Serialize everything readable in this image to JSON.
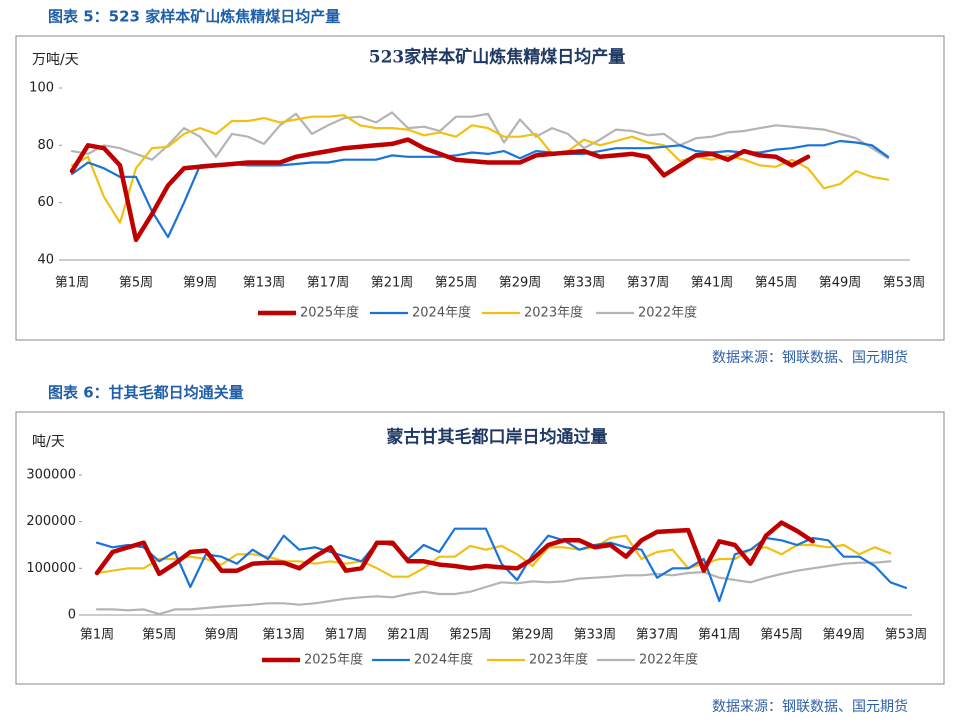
{
  "chart_data": [
    {
      "type": "line",
      "caption": "图表 5：523 家样本矿山炼焦精煤日均产量",
      "title": "523家样本矿山炼焦精煤日均产量",
      "y_label": "万吨/天",
      "source": "数据来源：钢联数据、国元期货",
      "categories": [
        "第1周",
        null,
        null,
        null,
        "第5周",
        null,
        null,
        null,
        "第9周",
        null,
        null,
        null,
        "第13周",
        null,
        null,
        null,
        "第17周",
        null,
        null,
        null,
        "第21周",
        null,
        null,
        null,
        "第25周",
        null,
        null,
        null,
        "第29周",
        null,
        null,
        null,
        "第33周",
        null,
        null,
        null,
        "第37周",
        null,
        null,
        null,
        "第41周",
        null,
        null,
        null,
        "第45周",
        null,
        null,
        null,
        "第49周",
        null,
        null,
        null,
        "第53周"
      ],
      "ylim": [
        40,
        100
      ],
      "yticks": [
        40,
        60,
        80,
        100
      ],
      "series": [
        {
          "name": "2025年度",
          "color": "#c00000",
          "linewidth": 4.5,
          "values": [
            71,
            80,
            79,
            73,
            47,
            56,
            66,
            72,
            72.5,
            73,
            73.5,
            74,
            74,
            74,
            76,
            77,
            78,
            79,
            79.5,
            80,
            80.5,
            82,
            79,
            77,
            75,
            74.5,
            74,
            74,
            74,
            76.5,
            77,
            77.5,
            78,
            76,
            76.5,
            77,
            76,
            69.5,
            73,
            76.5,
            77,
            75,
            78,
            76.5,
            76,
            73,
            76,
            null,
            null,
            null,
            null,
            null,
            null
          ]
        },
        {
          "name": "2024年度",
          "color": "#1874d8",
          "linewidth": 2.2,
          "values": [
            70,
            74,
            72,
            69,
            69,
            57,
            48,
            60,
            73,
            73.5,
            73.5,
            73,
            73,
            73,
            73.5,
            74,
            74,
            75,
            75,
            75,
            76.5,
            76,
            76,
            76,
            76.5,
            77.5,
            77,
            78,
            75.5,
            78,
            77.5,
            77,
            77,
            78,
            79,
            79,
            79,
            79.5,
            80,
            78,
            77.5,
            78,
            77.5,
            77.5,
            78.5,
            79,
            80,
            80,
            81.5,
            81,
            80,
            76,
            null
          ]
        },
        {
          "name": "2023年度",
          "color": "#f2c014",
          "linewidth": 2.2,
          "values": [
            73,
            76,
            62,
            53,
            72,
            79,
            79.5,
            84,
            86,
            84,
            88.5,
            88.5,
            89.5,
            88,
            89,
            90,
            90,
            90.5,
            87,
            86,
            86,
            85.5,
            83.5,
            84.5,
            83,
            87,
            86,
            83,
            83,
            84,
            77,
            78,
            82,
            80,
            81.5,
            83,
            81,
            80,
            74.5,
            76,
            75,
            76.5,
            75,
            73,
            72.5,
            75,
            72,
            65,
            66.5,
            71,
            69,
            68,
            null
          ]
        },
        {
          "name": "2022年度",
          "color": "#b4b4b4",
          "linewidth": 2.2,
          "values": [
            78,
            77,
            80,
            79,
            77,
            75,
            80,
            86,
            83,
            76,
            84,
            83,
            80.5,
            87,
            91,
            84,
            87,
            89.5,
            90,
            88,
            91.5,
            86,
            86.5,
            85,
            90,
            90,
            91,
            81,
            89,
            83,
            86,
            84,
            79,
            82,
            85.5,
            85,
            83.5,
            84,
            80,
            82.5,
            83,
            84.5,
            85,
            86,
            87,
            86.5,
            86,
            85.5,
            84,
            82.5,
            79,
            75.5,
            null
          ]
        }
      ]
    },
    {
      "type": "line",
      "caption": "图表 6：甘其毛都日均通关量",
      "title": "蒙古甘其毛都口岸日均通过量",
      "y_label": "吨/天",
      "source": "数据来源：钢联数据、国元期货",
      "categories": [
        "第1周",
        null,
        null,
        null,
        "第5周",
        null,
        null,
        null,
        "第9周",
        null,
        null,
        null,
        "第13周",
        null,
        null,
        null,
        "第17周",
        null,
        null,
        null,
        "第21周",
        null,
        null,
        null,
        "第25周",
        null,
        null,
        null,
        "第29周",
        null,
        null,
        null,
        "第33周",
        null,
        null,
        null,
        "第37周",
        null,
        null,
        null,
        "第41周",
        null,
        null,
        null,
        "第45周",
        null,
        null,
        null,
        "第49周",
        null,
        null,
        null,
        "第53周"
      ],
      "ylim": [
        0,
        300000
      ],
      "yticks": [
        0,
        100000,
        200000,
        300000
      ],
      "series": [
        {
          "name": "2025年度",
          "color": "#c00000",
          "linewidth": 4.5,
          "values": [
            90000,
            135000,
            145000,
            155000,
            88000,
            110000,
            135000,
            138000,
            95000,
            95000,
            110000,
            112000,
            112000,
            100000,
            125000,
            145000,
            95000,
            100000,
            155000,
            155000,
            115000,
            115000,
            108000,
            105000,
            100000,
            105000,
            102000,
            100000,
            120000,
            150000,
            160000,
            160000,
            145000,
            150000,
            125000,
            160000,
            178000,
            180000,
            182000,
            95000,
            158000,
            150000,
            110000,
            170000,
            198000,
            180000,
            158000,
            null,
            null,
            null,
            null,
            null,
            null
          ]
        },
        {
          "name": "2024年度",
          "color": "#1874d8",
          "linewidth": 2.2,
          "values": [
            155000,
            145000,
            150000,
            145000,
            115000,
            135000,
            60000,
            130000,
            125000,
            110000,
            140000,
            120000,
            170000,
            140000,
            145000,
            135000,
            125000,
            115000,
            155000,
            150000,
            120000,
            150000,
            135000,
            185000,
            185000,
            185000,
            110000,
            75000,
            130000,
            170000,
            160000,
            140000,
            150000,
            155000,
            145000,
            140000,
            80000,
            100000,
            100000,
            120000,
            30000,
            130000,
            140000,
            165000,
            160000,
            150000,
            165000,
            160000,
            125000,
            125000,
            105000,
            70000,
            58000
          ]
        },
        {
          "name": "2023年度",
          "color": "#f2c014",
          "linewidth": 2.2,
          "values": [
            90000,
            95000,
            100000,
            100000,
            120000,
            120000,
            125000,
            120000,
            108000,
            130000,
            130000,
            125000,
            115000,
            115000,
            110000,
            115000,
            110000,
            115000,
            100000,
            82000,
            82000,
            100000,
            125000,
            125000,
            148000,
            140000,
            148000,
            130000,
            105000,
            145000,
            145000,
            140000,
            145000,
            165000,
            170000,
            120000,
            135000,
            140000,
            100000,
            110000,
            120000,
            120000,
            140000,
            145000,
            130000,
            150000,
            150000,
            145000,
            150000,
            130000,
            145000,
            132000,
            null
          ]
        },
        {
          "name": "2022年度",
          "color": "#b4b4b4",
          "linewidth": 2.2,
          "values": [
            12000,
            12000,
            10000,
            12000,
            2000,
            12000,
            12000,
            15000,
            18000,
            20000,
            22000,
            25000,
            25000,
            22000,
            25000,
            30000,
            35000,
            38000,
            40000,
            38000,
            45000,
            50000,
            45000,
            45000,
            50000,
            60000,
            70000,
            68000,
            72000,
            70000,
            72000,
            78000,
            80000,
            82000,
            85000,
            85000,
            88000,
            85000,
            90000,
            92000,
            80000,
            75000,
            70000,
            80000,
            88000,
            95000,
            100000,
            105000,
            110000,
            112000,
            112000,
            115000,
            null
          ]
        }
      ]
    }
  ]
}
